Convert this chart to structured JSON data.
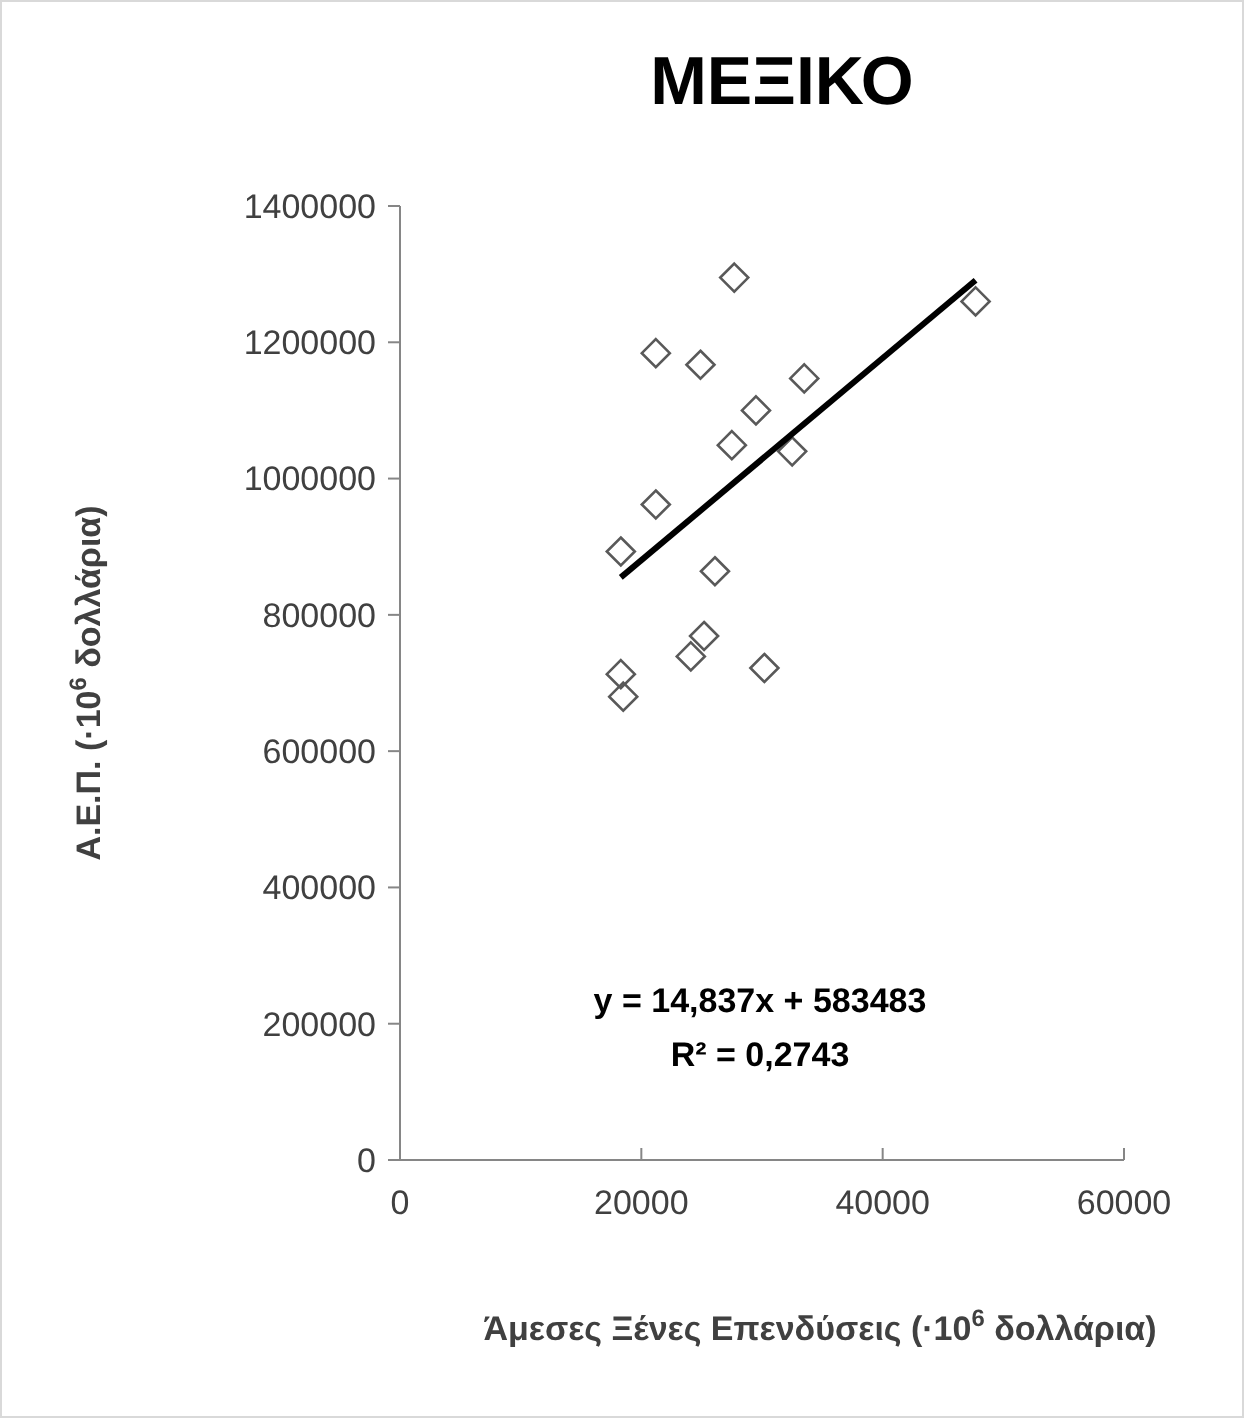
{
  "chart_data": {
    "type": "scatter",
    "title": "ΜΕΞΙΚΟ",
    "xlabel": "Άμεσες Ξένες Επενδύσεις (·10$^{6}$ δολλάρια)",
    "ylabel": "Α.Ε.Π.  (·10$^{6}$ δολλάρια)",
    "xlim": [
      0,
      60000
    ],
    "xticks": [
      0,
      20000,
      40000,
      60000
    ],
    "ylim": [
      0,
      1400000
    ],
    "yticks": [
      0,
      200000,
      400000,
      600000,
      800000,
      1000000,
      1200000,
      1400000
    ],
    "grid": false,
    "series": [
      {
        "color": "#595959",
        "marker": "diamond",
        "x": [
          27700,
          47700,
          21200,
          24900,
          33500,
          29500,
          27500,
          32500,
          21200,
          18300,
          26100,
          25200,
          24100,
          30200,
          18300,
          18500
        ],
        "values": [
          1295000,
          1260000,
          1184000,
          1167000,
          1147000,
          1100000,
          1049000,
          1040000,
          962000,
          893000,
          864000,
          769000,
          739000,
          722000,
          713000,
          680000
        ]
      },
      {
        "type": "line",
        "color": "#000000",
        "marker": "none",
        "line_style": "solid",
        "x": [
          18300,
          47700
        ],
        "values": [
          855000,
          1291000
        ]
      }
    ],
    "annotations": [
      "y = 14,837x + 583483",
      "R² = 0,2743"
    ]
  }
}
